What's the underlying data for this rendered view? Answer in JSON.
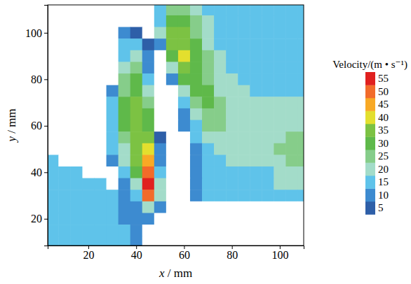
{
  "chart_data": {
    "type": "heatmap",
    "x_label": "x / mm",
    "y_label": "y / mm",
    "x": [
      5,
      10,
      15,
      20,
      25,
      30,
      35,
      40,
      45,
      50,
      55,
      60,
      65,
      70,
      75,
      80,
      85,
      90,
      95,
      100,
      105,
      110
    ],
    "y": [
      110,
      105,
      100,
      95,
      90,
      85,
      80,
      75,
      70,
      65,
      60,
      55,
      50,
      45,
      40,
      35,
      30,
      25,
      20,
      15,
      10
    ],
    "values": [
      [
        3,
        3,
        3,
        4,
        4,
        4,
        4,
        4,
        4,
        15,
        25,
        28,
        22,
        18,
        16,
        15,
        15,
        15,
        15,
        15,
        15,
        15
      ],
      [
        3,
        3,
        3,
        4,
        4,
        4,
        4,
        4,
        4,
        18,
        30,
        32,
        25,
        20,
        17,
        16,
        16,
        16,
        16,
        15,
        15,
        15
      ],
      [
        3,
        3,
        3,
        4,
        4,
        4,
        10,
        8,
        4,
        20,
        35,
        35,
        28,
        22,
        18,
        17,
        16,
        16,
        16,
        16,
        16,
        16
      ],
      [
        3,
        3,
        3,
        4,
        4,
        4,
        15,
        15,
        8,
        12,
        36,
        38,
        30,
        23,
        19,
        18,
        17,
        17,
        16,
        16,
        16,
        16
      ],
      [
        3,
        3,
        3,
        4,
        4,
        4,
        18,
        20,
        12,
        4,
        33,
        40,
        32,
        25,
        20,
        18,
        17,
        17,
        17,
        16,
        16,
        16
      ],
      [
        3,
        3,
        3,
        4,
        4,
        4,
        22,
        28,
        14,
        4,
        22,
        36,
        33,
        27,
        22,
        19,
        18,
        17,
        17,
        17,
        17,
        17
      ],
      [
        3,
        3,
        3,
        4,
        4,
        4,
        26,
        32,
        18,
        4,
        12,
        30,
        33,
        28,
        23,
        20,
        19,
        18,
        18,
        18,
        18,
        18
      ],
      [
        3,
        3,
        3,
        4,
        4,
        10,
        28,
        34,
        22,
        4,
        4,
        22,
        32,
        30,
        24,
        21,
        20,
        19,
        19,
        19,
        19,
        19
      ],
      [
        3,
        3,
        3,
        4,
        4,
        15,
        30,
        35,
        26,
        4,
        4,
        16,
        28,
        30,
        25,
        22,
        21,
        21,
        21,
        21,
        21,
        21
      ],
      [
        3,
        3,
        3,
        4,
        4,
        15,
        30,
        36,
        30,
        4,
        4,
        12,
        24,
        28,
        26,
        23,
        22,
        22,
        22,
        22,
        22,
        22
      ],
      [
        3,
        3,
        3,
        4,
        4,
        15,
        30,
        38,
        33,
        4,
        4,
        10,
        18,
        25,
        25,
        23,
        22,
        22,
        22,
        22,
        23,
        23
      ],
      [
        3,
        3,
        3,
        4,
        4,
        15,
        28,
        38,
        38,
        8,
        4,
        4,
        15,
        22,
        23,
        22,
        22,
        22,
        22,
        24,
        26,
        26
      ],
      [
        3,
        3,
        4,
        4,
        4,
        15,
        24,
        38,
        42,
        10,
        4,
        4,
        12,
        18,
        21,
        21,
        21,
        21,
        22,
        25,
        28,
        28
      ],
      [
        15,
        4,
        4,
        4,
        4,
        12,
        20,
        36,
        46,
        12,
        4,
        4,
        11,
        16,
        19,
        20,
        20,
        20,
        21,
        24,
        27,
        27
      ],
      [
        16,
        16,
        15,
        4,
        4,
        4,
        16,
        30,
        50,
        15,
        4,
        4,
        10,
        15,
        17,
        18,
        18,
        18,
        19,
        22,
        24,
        24
      ],
      [
        17,
        17,
        16,
        16,
        15,
        4,
        12,
        24,
        55,
        20,
        4,
        4,
        10,
        15,
        16,
        17,
        17,
        17,
        18,
        20,
        21,
        21
      ],
      [
        18,
        17,
        17,
        16,
        16,
        15,
        10,
        16,
        52,
        22,
        4,
        4,
        10,
        15,
        16,
        16,
        16,
        16,
        16,
        17,
        17,
        17
      ],
      [
        17,
        17,
        16,
        16,
        16,
        15,
        10,
        10,
        20,
        12,
        4,
        3,
        3,
        3,
        3,
        3,
        3,
        3,
        3,
        3,
        3,
        3
      ],
      [
        16,
        16,
        16,
        16,
        16,
        15,
        12,
        10,
        10,
        4,
        3,
        3,
        3,
        3,
        3,
        3,
        3,
        3,
        3,
        3,
        3,
        3
      ],
      [
        16,
        16,
        16,
        16,
        16,
        15,
        15,
        12,
        4,
        4,
        3,
        3,
        3,
        3,
        3,
        3,
        3,
        3,
        3,
        3,
        3,
        3
      ],
      [
        16,
        16,
        16,
        16,
        16,
        15,
        15,
        12,
        4,
        3,
        3,
        3,
        3,
        3,
        3,
        3,
        3,
        3,
        3,
        3,
        3,
        3
      ]
    ],
    "xlim": [
      3,
      110
    ],
    "ylim": [
      8.5,
      112
    ],
    "xticks": [
      20,
      40,
      60,
      80,
      100
    ],
    "yticks": [
      20,
      40,
      60,
      80,
      100
    ],
    "colorbar": {
      "title": "Velocity/(m • s⁻¹)",
      "levels": [
        5,
        10,
        15,
        20,
        25,
        30,
        35,
        40,
        45,
        50,
        55
      ],
      "colors": [
        "#2e5fa8",
        "#3d8bd0",
        "#5fc3ea",
        "#a3dcc9",
        "#86cd8a",
        "#5fb94a",
        "#7cc243",
        "#e3df2e",
        "#f8a925",
        "#f26b2a",
        "#e0201f"
      ]
    }
  }
}
